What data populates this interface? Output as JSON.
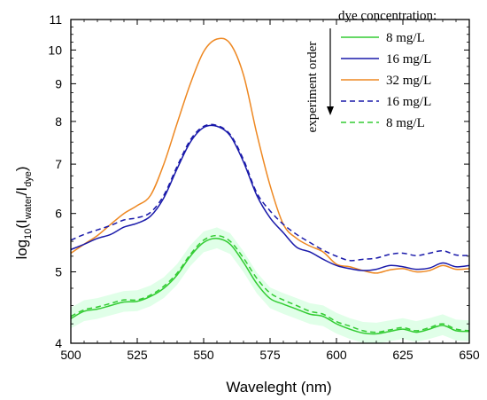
{
  "chart_data": {
    "type": "line",
    "title": "",
    "xlabel": "Waveleght (nm)",
    "ylabel": {
      "main": "log",
      "base": "10",
      "open": "(I",
      "num_sub": "water",
      "slash": "/I",
      "den_sub": "dye",
      "close": ")"
    },
    "xlim": [
      500,
      650
    ],
    "ylim": [
      4,
      11
    ],
    "yscale": "log",
    "xticks": [
      500,
      525,
      550,
      575,
      600,
      625,
      650
    ],
    "yticks": [
      4,
      5,
      6,
      7,
      8,
      9,
      10,
      11
    ],
    "grid": false,
    "legend": {
      "title": "dye concentration:",
      "placement": "top-right",
      "arrow_label": "experiment order"
    },
    "x": [
      500,
      505,
      510,
      515,
      520,
      525,
      530,
      535,
      540,
      545,
      550,
      555,
      560,
      565,
      570,
      575,
      580,
      585,
      590,
      595,
      600,
      605,
      610,
      615,
      620,
      625,
      630,
      635,
      640,
      645,
      650
    ],
    "series": [
      {
        "name": "8 mg/L",
        "color": "#33cc33",
        "dash": "solid",
        "values": [
          4.32,
          4.42,
          4.45,
          4.5,
          4.55,
          4.56,
          4.63,
          4.75,
          4.95,
          5.25,
          5.48,
          5.55,
          5.45,
          5.15,
          4.82,
          4.6,
          4.52,
          4.45,
          4.38,
          4.35,
          4.25,
          4.18,
          4.13,
          4.12,
          4.15,
          4.18,
          4.14,
          4.18,
          4.23,
          4.16,
          4.15
        ]
      },
      {
        "name": "16 mg/L",
        "color": "#1a1aaa",
        "dash": "solid",
        "values": [
          5.36,
          5.45,
          5.55,
          5.62,
          5.75,
          5.82,
          5.95,
          6.3,
          6.9,
          7.5,
          7.85,
          7.88,
          7.65,
          7.05,
          6.35,
          5.92,
          5.65,
          5.4,
          5.32,
          5.2,
          5.1,
          5.05,
          5.02,
          5.04,
          5.1,
          5.08,
          5.04,
          5.06,
          5.14,
          5.08,
          5.1
        ]
      },
      {
        "name": "32 mg/L",
        "color": "#ee8822",
        "dash": "solid",
        "values": [
          5.3,
          5.45,
          5.6,
          5.8,
          6.0,
          6.15,
          6.35,
          7.0,
          7.95,
          9.0,
          9.95,
          10.35,
          10.2,
          9.25,
          7.7,
          6.55,
          5.8,
          5.55,
          5.42,
          5.32,
          5.12,
          5.08,
          5.02,
          4.98,
          5.03,
          5.05,
          5.0,
          5.02,
          5.1,
          5.04,
          5.05
        ]
      },
      {
        "name": "16 mg/L",
        "color": "#1a1aaa",
        "dash": "dashed",
        "values": [
          5.52,
          5.62,
          5.7,
          5.78,
          5.88,
          5.92,
          6.02,
          6.35,
          6.95,
          7.55,
          7.88,
          7.9,
          7.68,
          7.1,
          6.4,
          6.05,
          5.8,
          5.62,
          5.48,
          5.35,
          5.25,
          5.18,
          5.2,
          5.22,
          5.28,
          5.3,
          5.26,
          5.3,
          5.34,
          5.27,
          5.26
        ]
      },
      {
        "name": "8 mg/L",
        "color": "#33cc33",
        "dash": "dashed",
        "values": [
          4.35,
          4.44,
          4.48,
          4.53,
          4.58,
          4.58,
          4.65,
          4.78,
          4.98,
          5.28,
          5.52,
          5.6,
          5.5,
          5.22,
          4.9,
          4.68,
          4.58,
          4.5,
          4.42,
          4.38,
          4.28,
          4.22,
          4.16,
          4.14,
          4.17,
          4.2,
          4.16,
          4.2,
          4.25,
          4.18,
          4.16
        ]
      }
    ],
    "colors": {
      "green": "#33cc33",
      "blue": "#1a1aaa",
      "orange": "#ee8822",
      "band": "#e0ffe8"
    }
  }
}
